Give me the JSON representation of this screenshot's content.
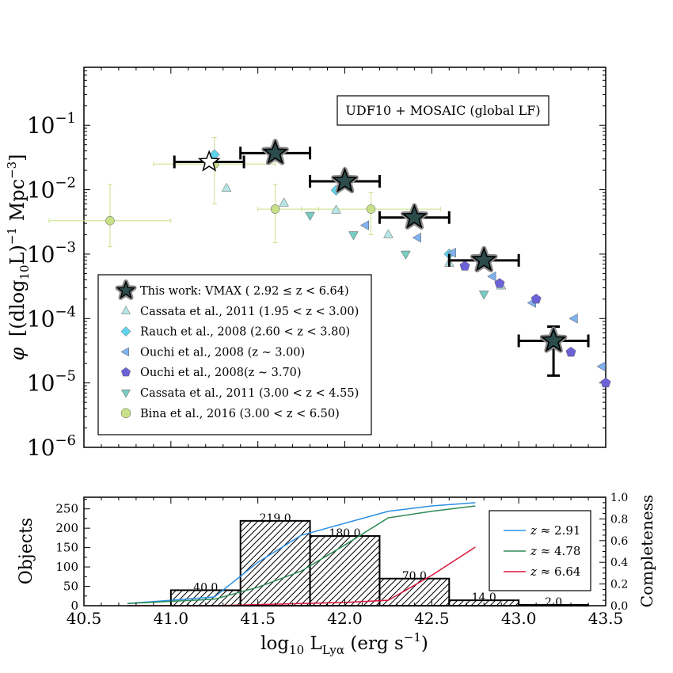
{
  "chart_data": [
    {
      "type": "scatter",
      "title": "",
      "xlabel": "",
      "ylabel": "φ  [(dlog10L)^-1 Mpc^-3]",
      "ylabel_parts": {
        "phi": "φ",
        "open": "[(dlog",
        "ten": "10",
        "mid": "L)",
        "exp1": "−1",
        "mpc": " Mpc",
        "exp2": "−3",
        "close": "]"
      },
      "xlim": [
        40.5,
        43.5
      ],
      "ylim_log10": [
        -6,
        -0.1
      ],
      "yscale": "log",
      "ytick_labels": [
        {
          "exp": -1,
          "base": "10",
          "sup": "−1"
        },
        {
          "exp": -2,
          "base": "10",
          "sup": "−2"
        },
        {
          "exp": -3,
          "base": "10",
          "sup": "−3"
        },
        {
          "exp": -4,
          "base": "10",
          "sup": "−4"
        },
        {
          "exp": -5,
          "base": "10",
          "sup": "−5"
        },
        {
          "exp": -6,
          "base": "10",
          "sup": "−6"
        }
      ],
      "annotation": "UDF10 + MOSAIC (global LF)",
      "legend_placement": "lower-left",
      "series": [
        {
          "name": "This work: VMAX ( 2.92 ≤ z < 6.64)",
          "marker": "star",
          "color": "#2c4b4b",
          "points": [
            {
              "x": 41.22,
              "y": 0.027,
              "xerr": [
                0.2,
                0.2
              ],
              "open": true
            },
            {
              "x": 41.6,
              "y": 0.037,
              "xerr": [
                0.2,
                0.2
              ]
            },
            {
              "x": 42.0,
              "y": 0.0135,
              "xerr": [
                0.2,
                0.2
              ]
            },
            {
              "x": 42.4,
              "y": 0.0037,
              "xerr": [
                0.2,
                0.2
              ]
            },
            {
              "x": 42.8,
              "y": 0.0008,
              "xerr": [
                0.2,
                0.2
              ]
            },
            {
              "x": 43.2,
              "y": 4.5e-05,
              "xerr": [
                0.2,
                0.2
              ],
              "ylow": 1.3e-05,
              "yhigh": 7.5e-05
            }
          ]
        },
        {
          "name": "Cassata et al., 2011 (1.95 < z < 3.00)",
          "marker": "triangle-up",
          "color": "#b6e6e6",
          "points": [
            {
              "x": 41.24,
              "y": 0.033
            },
            {
              "x": 41.32,
              "y": 0.0105
            },
            {
              "x": 41.65,
              "y": 0.0062
            },
            {
              "x": 41.95,
              "y": 0.0048
            },
            {
              "x": 42.25,
              "y": 0.002
            },
            {
              "x": 42.6,
              "y": 0.00072
            },
            {
              "x": 42.9,
              "y": 0.00032
            }
          ]
        },
        {
          "name": "Rauch et al., 2008 (2.60 < z < 3.80)",
          "marker": "diamond",
          "color": "#5fd4ec",
          "points": [
            {
              "x": 41.25,
              "y": 0.035
            },
            {
              "x": 41.95,
              "y": 0.0098
            },
            {
              "x": 42.6,
              "y": 0.001
            }
          ]
        },
        {
          "name": "Ouchi et al., 2008 (z ∼ 3.00)",
          "marker": "triangle-left",
          "color": "#80b2f0",
          "points": [
            {
              "x": 42.12,
              "y": 0.0028
            },
            {
              "x": 42.42,
              "y": 0.0018
            },
            {
              "x": 42.62,
              "y": 0.00105
            },
            {
              "x": 42.85,
              "y": 0.00045
            },
            {
              "x": 43.08,
              "y": 0.000175
            },
            {
              "x": 43.32,
              "y": 0.0001
            },
            {
              "x": 43.48,
              "y": 1.8e-05
            }
          ]
        },
        {
          "name": "Ouchi et al., 2008(z ∼ 3.70)",
          "marker": "pentagon",
          "color": "#6c62d8",
          "points": [
            {
              "x": 42.69,
              "y": 0.00065
            },
            {
              "x": 42.89,
              "y": 0.00035
            },
            {
              "x": 43.1,
              "y": 0.0002
            },
            {
              "x": 43.3,
              "y": 3e-05
            },
            {
              "x": 43.5,
              "y": 1e-05
            }
          ]
        },
        {
          "name": "Cassata et al., 2011 (3.00 < z < 4.55)",
          "marker": "triangle-down",
          "color": "#79ccc4",
          "points": [
            {
              "x": 41.8,
              "y": 0.004
            },
            {
              "x": 42.05,
              "y": 0.002
            },
            {
              "x": 42.35,
              "y": 0.001
            },
            {
              "x": 42.8,
              "y": 0.00024
            }
          ]
        },
        {
          "name": "Bina et al., 2016 (3.00 < z < 6.50)",
          "marker": "circle",
          "color": "#c8e088",
          "points": [
            {
              "x": 40.65,
              "y": 0.0033,
              "xerr": [
                0.35,
                0.35
              ],
              "ylow": 0.0013,
              "yhigh": 0.012
            },
            {
              "x": 41.25,
              "y": 0.025,
              "xerr": [
                0.35,
                0.35
              ],
              "ylow": 0.006,
              "yhigh": 0.065
            },
            {
              "x": 41.6,
              "y": 0.005,
              "xerr": [
                0.1,
                0.25
              ],
              "ylow": 0.0015,
              "yhigh": 0.012
            },
            {
              "x": 42.15,
              "y": 0.005,
              "xerr": [
                0.4,
                0.4
              ],
              "ylow": 0.002,
              "yhigh": 0.009
            }
          ]
        }
      ]
    },
    {
      "type": "bar",
      "title": "",
      "xlabel_parts": {
        "log": "log",
        "ten": "10",
        "l": " L",
        "sub": "Lyα",
        "unit": " (erg s",
        "exp": "−1",
        "close": ")"
      },
      "ylabel": "Objects",
      "y2label": "Completeness",
      "xlim": [
        40.5,
        43.5
      ],
      "ylim": [
        0,
        280
      ],
      "y2lim": [
        0,
        1.0
      ],
      "xticks": [
        "40.5",
        "41.0",
        "41.5",
        "42.0",
        "42.5",
        "43.0",
        "43.5"
      ],
      "yticks": [
        "0",
        "50",
        "100",
        "150",
        "200",
        "250"
      ],
      "y2ticks": [
        "0.0",
        "0.2",
        "0.4",
        "0.6",
        "0.8",
        "1.0"
      ],
      "bins": [
        {
          "x0": 41.0,
          "x1": 41.4,
          "count": 40,
          "label": "40.0"
        },
        {
          "x0": 41.4,
          "x1": 41.8,
          "count": 219,
          "label": "219.0"
        },
        {
          "x0": 41.8,
          "x1": 42.2,
          "count": 180,
          "label": "180.0"
        },
        {
          "x0": 42.2,
          "x1": 42.6,
          "count": 70,
          "label": "70.0"
        },
        {
          "x0": 42.6,
          "x1": 43.0,
          "count": 14,
          "label": "14.0"
        },
        {
          "x0": 43.0,
          "x1": 43.4,
          "count": 2,
          "label": "2.0"
        }
      ],
      "legend_placement": "right",
      "completeness": [
        {
          "name": "z ≈ 2.91",
          "z": "2.91",
          "color": "#2b8fe6",
          "x": [
            40.75,
            41.0,
            41.25,
            41.5,
            41.75,
            42.0,
            42.25,
            42.5,
            42.75
          ],
          "values": [
            0.02,
            0.05,
            0.08,
            0.4,
            0.65,
            0.76,
            0.87,
            0.92,
            0.95
          ]
        },
        {
          "name": "z ≈ 4.78",
          "z": "4.78",
          "color": "#2e8b57",
          "x": [
            40.75,
            41.0,
            41.25,
            41.5,
            41.75,
            42.0,
            42.25,
            42.5,
            42.75
          ],
          "values": [
            0.02,
            0.04,
            0.06,
            0.17,
            0.32,
            0.56,
            0.81,
            0.87,
            0.92
          ]
        },
        {
          "name": "z ≈ 6.64",
          "z": "6.64",
          "color": "#dc143c",
          "x": [
            40.75,
            41.0,
            41.25,
            41.5,
            41.75,
            42.0,
            42.25,
            42.5,
            42.75
          ],
          "values": [
            0.0,
            0.0,
            0.0,
            0.01,
            0.02,
            0.03,
            0.05,
            0.28,
            0.54
          ]
        }
      ]
    }
  ]
}
